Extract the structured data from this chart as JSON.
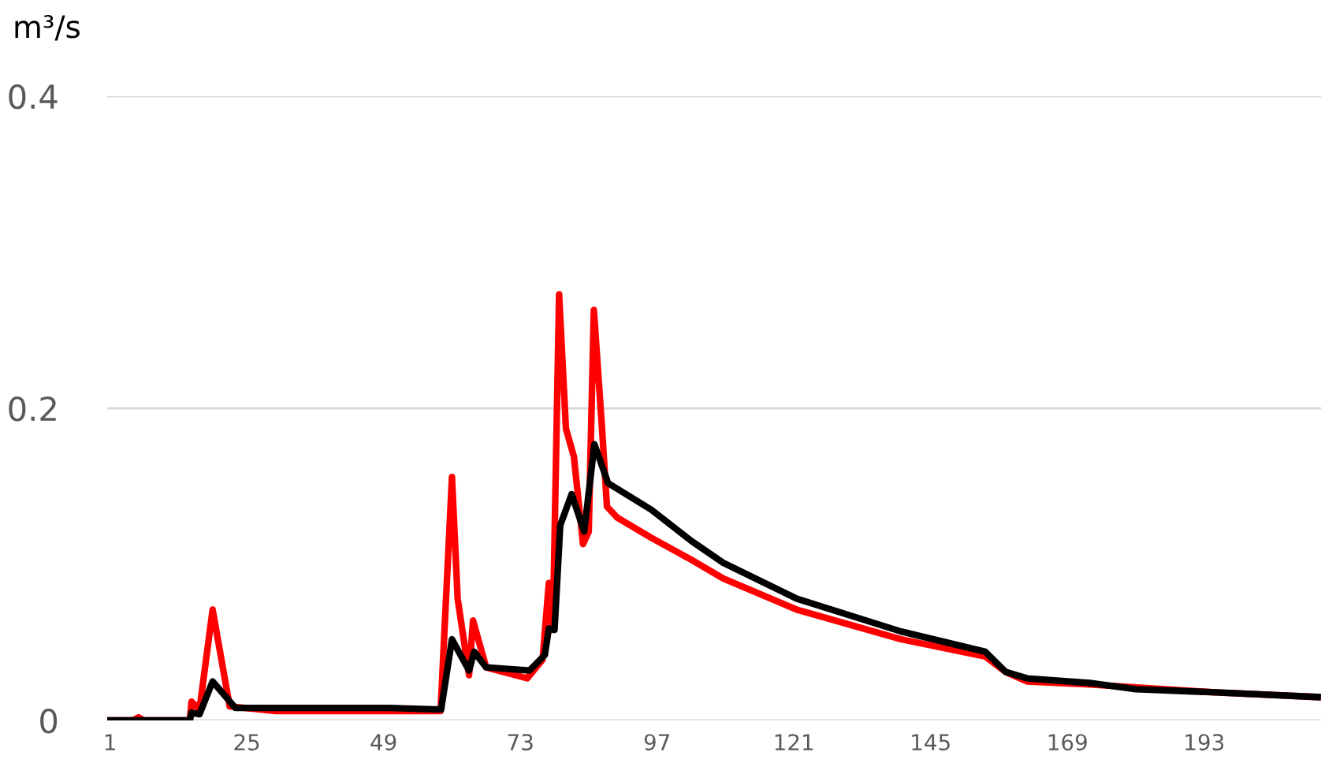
{
  "chart_data": {
    "type": "line",
    "ylabel": "m³/s",
    "xlim": [
      0.5,
      213.5
    ],
    "xticks": [
      1,
      25,
      49,
      73,
      97,
      121,
      145,
      169,
      193
    ],
    "ylim": [
      0,
      0.4
    ],
    "yticks": [
      0,
      0.2,
      0.4
    ],
    "grid": "y",
    "line_style": "solid",
    "marker": "none",
    "series": [
      {
        "color": "#ff0000",
        "x": [
          1,
          5,
          6,
          7,
          15,
          15.3,
          16.7,
          19,
          22,
          30,
          59,
          61,
          62,
          64,
          64.7,
          67,
          74.2,
          76.9,
          78,
          78.7,
          79.8,
          81,
          82.4,
          84,
          85,
          85.9,
          87.3,
          88.2,
          90,
          96,
          103,
          108.6,
          121.5,
          139.8,
          154.6,
          158.2,
          161.9,
          172.9,
          195,
          212.9
        ],
        "values": [
          0,
          0,
          0.002,
          0,
          0,
          0.012,
          0.007,
          0.071,
          0.009,
          0.006,
          0.006,
          0.156,
          0.078,
          0.029,
          0.064,
          0.034,
          0.027,
          0.039,
          0.088,
          0.058,
          0.273,
          0.187,
          0.169,
          0.113,
          0.121,
          0.263,
          0.189,
          0.137,
          0.13,
          0.117,
          0.103,
          0.091,
          0.071,
          0.052,
          0.041,
          0.031,
          0.025,
          0.023,
          0.018,
          0.015
        ]
      },
      {
        "color": "#000000",
        "x": [
          1,
          15,
          15.3,
          16.7,
          19,
          23,
          50,
          59.1,
          61,
          64,
          64.9,
          67,
          74.6,
          77.3,
          78,
          79,
          80,
          82,
          84.2,
          86,
          88.4,
          96,
          103,
          108.6,
          121.5,
          139.8,
          154.6,
          158.2,
          161.9,
          172.9,
          181,
          195,
          212.9
        ],
        "values": [
          0,
          0,
          0.005,
          0.004,
          0.025,
          0.008,
          0.008,
          0.007,
          0.052,
          0.032,
          0.044,
          0.034,
          0.032,
          0.042,
          0.059,
          0.058,
          0.125,
          0.145,
          0.121,
          0.177,
          0.152,
          0.135,
          0.115,
          0.101,
          0.078,
          0.057,
          0.044,
          0.031,
          0.027,
          0.024,
          0.02,
          0.018,
          0.015
        ]
      }
    ]
  }
}
